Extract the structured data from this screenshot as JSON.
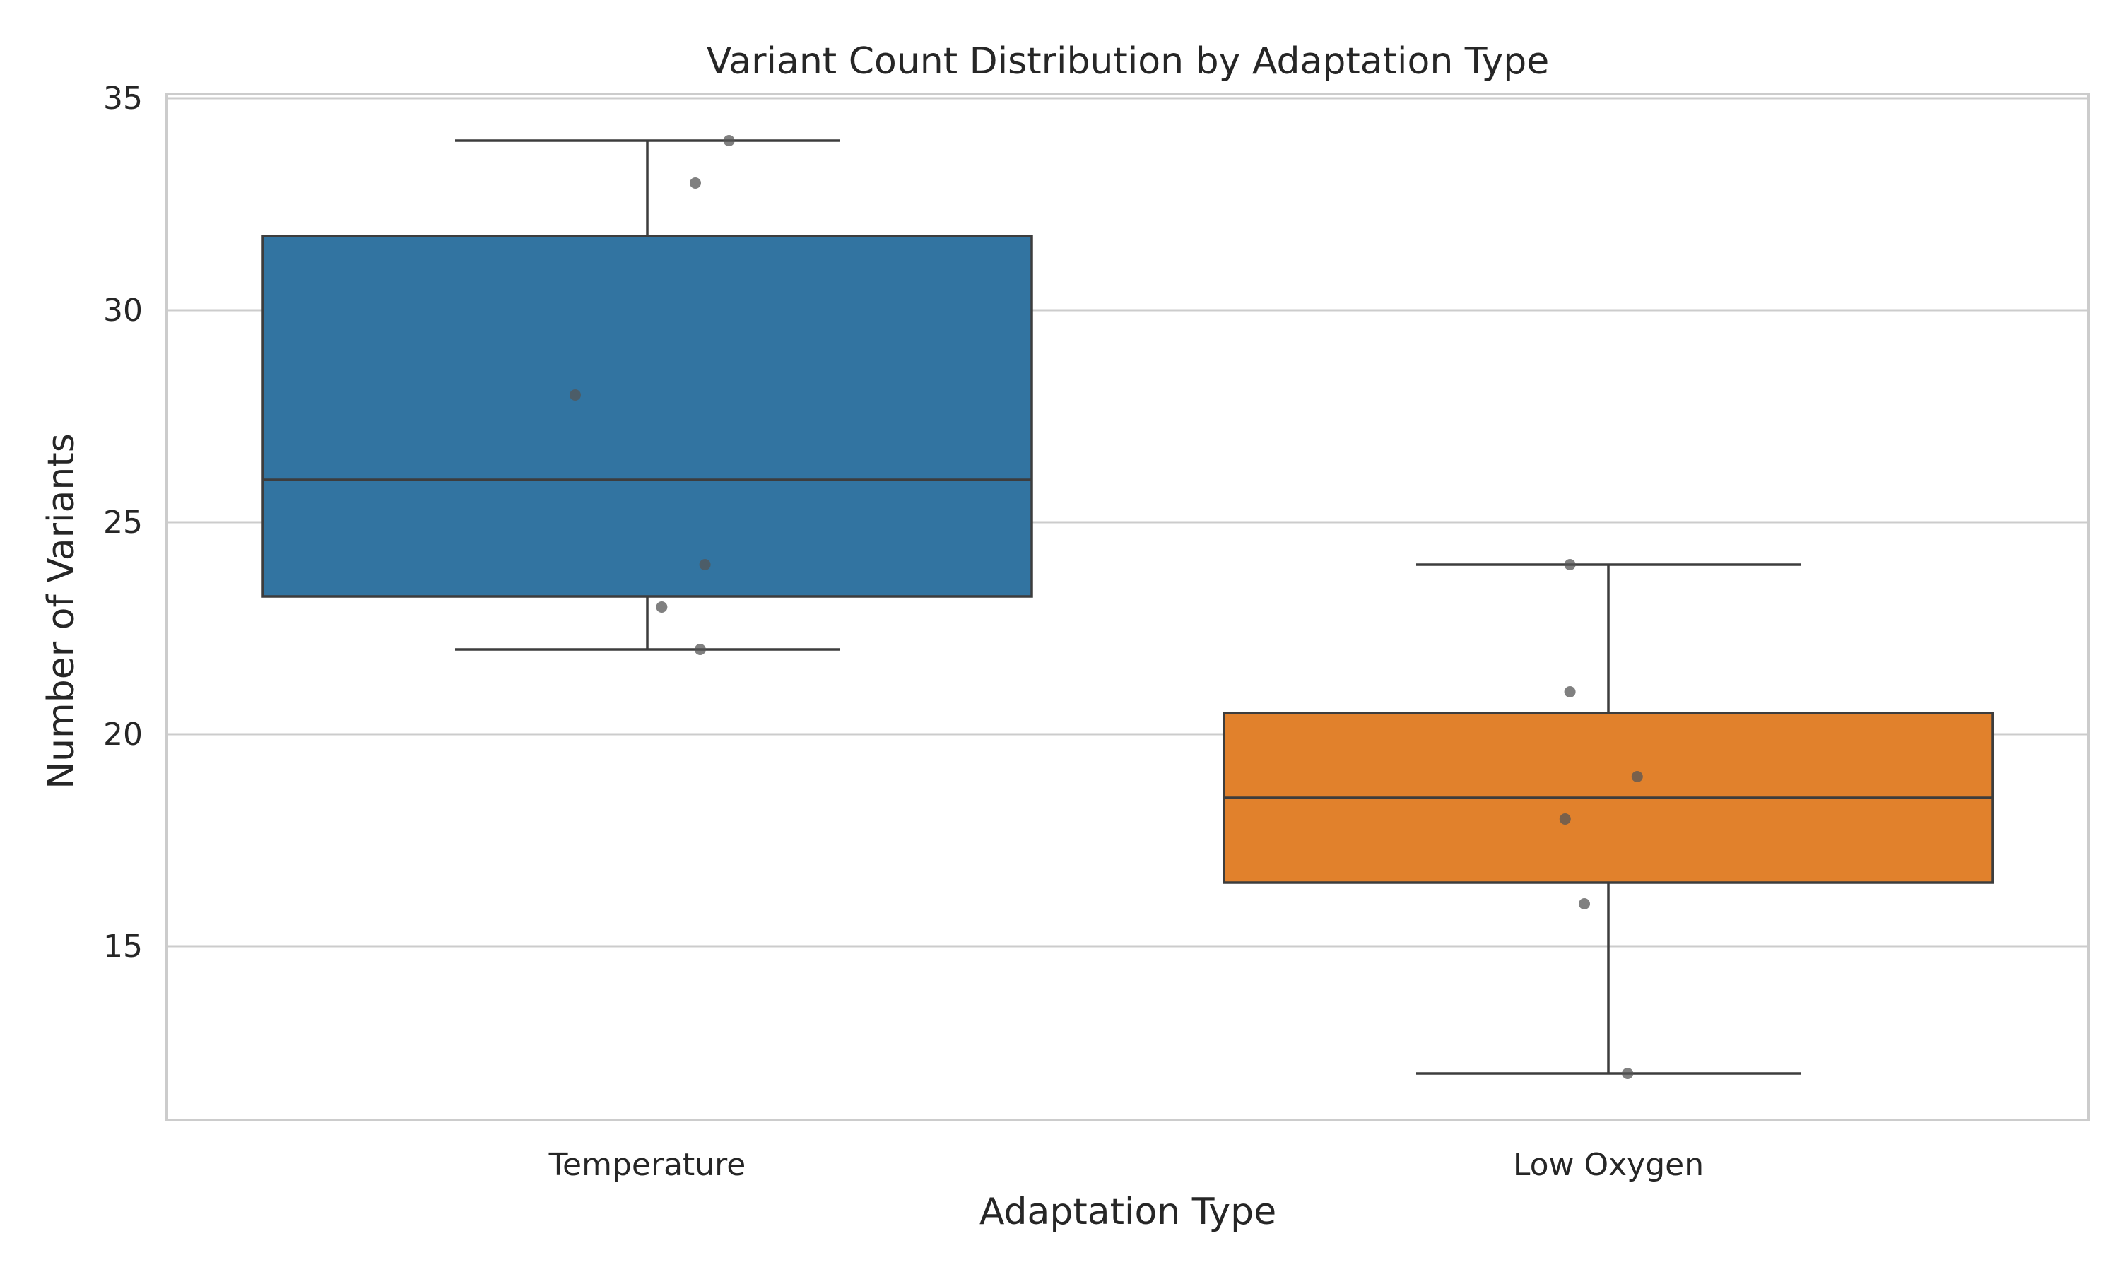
{
  "chart_data": {
    "type": "box",
    "title": "Variant Count Distribution by Adaptation Type",
    "xlabel": "Adaptation Type",
    "ylabel": "Number of Variants",
    "categories": [
      "Temperature",
      "Low Oxygen"
    ],
    "ylim": [
      10.9,
      35.1
    ],
    "yticks": [
      15,
      20,
      25,
      30,
      35
    ],
    "grid": true,
    "boxes": [
      {
        "category": "Temperature",
        "color": "#3274a1",
        "whisker_low": 22,
        "q1": 23.25,
        "median": 26,
        "q3": 31.75,
        "whisker_high": 34
      },
      {
        "category": "Low Oxygen",
        "color": "#e1812c",
        "whisker_low": 12,
        "q1": 16.5,
        "median": 18.5,
        "q3": 20.5,
        "whisker_high": 24
      }
    ],
    "points": [
      {
        "category": "Temperature",
        "values": [
          34,
          33,
          28,
          24,
          23,
          22
        ]
      },
      {
        "category": "Low Oxygen",
        "values": [
          24,
          21,
          19,
          18,
          16,
          12
        ]
      }
    ],
    "colors": {
      "grid": "#cccccc",
      "frame": "#cccccc",
      "line": "#3d3d3d",
      "point": "#555555"
    }
  }
}
